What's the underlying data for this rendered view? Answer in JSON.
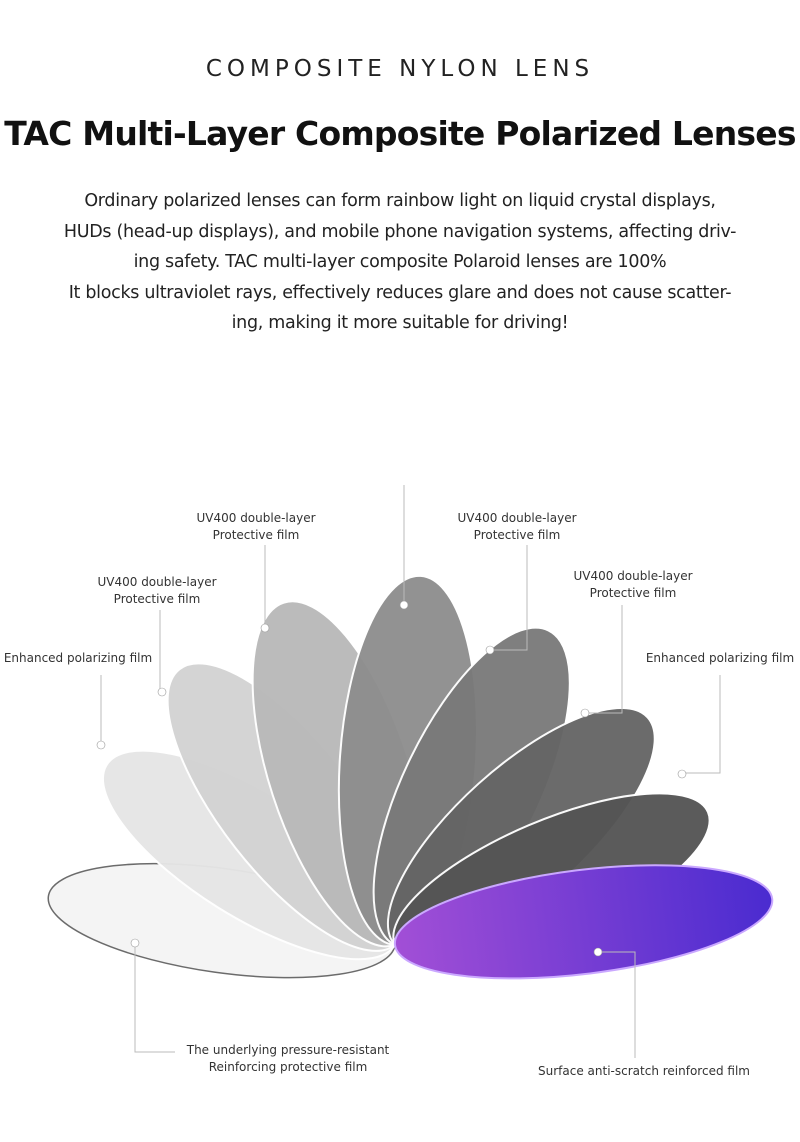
{
  "header": {
    "eyebrow": "COMPOSITE NYLON LENS",
    "title": "TAC Multi-Layer Composite Polarized Lenses"
  },
  "description": [
    "Ordinary polarized lenses can form rainbow light on liquid crystal displays,",
    "HUDs (head-up displays), and mobile phone navigation systems, affecting driv-",
    "ing safety. TAC multi-layer composite Polaroid lenses are 100%",
    "It blocks ultraviolet rays, effectively reduces glare and does not cause scatter-",
    "ing, making it more suitable for driving!"
  ],
  "labels": {
    "uv_left_top": [
      "UV400 double-layer",
      "Protective film"
    ],
    "uv_left": [
      "UV400 double-layer",
      "Protective film"
    ],
    "polar_left": [
      "Enhanced polarizing film"
    ],
    "uv_right_top": [
      "UV400 double-layer",
      "Protective film"
    ],
    "uv_right": [
      "UV400 double-layer",
      "Protective film"
    ],
    "polar_right": [
      "Enhanced polarizing film"
    ],
    "base": [
      "The underlying pressure-resistant",
      "Reinforcing protective film"
    ],
    "surface": [
      "Surface anti-scratch reinforced film"
    ]
  },
  "colors": {
    "lens_light": "#f2f2f2",
    "lens_dark": "#4a4a4a",
    "surface_purple_start": "#4a2bd0",
    "surface_purple_end": "#a24fd6"
  }
}
